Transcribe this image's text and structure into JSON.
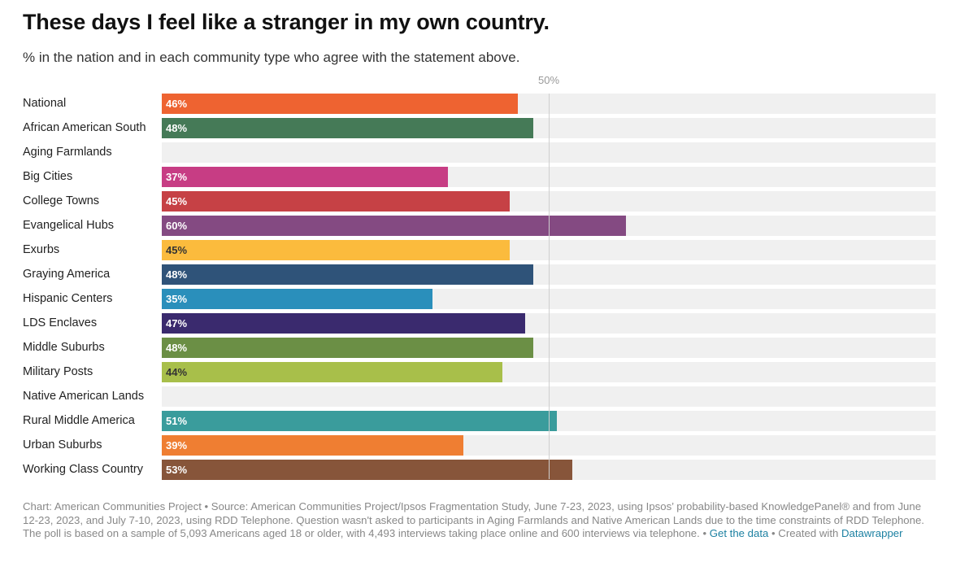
{
  "header": {
    "title": "These days I feel like a stranger in my own country.",
    "subtitle": "% in the nation and in each community type who agree with the statement above."
  },
  "chart_data": {
    "type": "bar",
    "orientation": "horizontal",
    "title": "These days I feel like a stranger in my own country.",
    "subtitle": "% in the nation and in each community type who agree with the statement above.",
    "xlim": [
      0,
      100
    ],
    "reference_line": {
      "value": 50,
      "label": "50%"
    },
    "categories": [
      "National",
      "African American South",
      "Aging Farmlands",
      "Big Cities",
      "College Towns",
      "Evangelical Hubs",
      "Exurbs",
      "Graying America",
      "Hispanic Centers",
      "LDS Enclaves",
      "Middle Suburbs",
      "Military Posts",
      "Native American Lands",
      "Rural Middle America",
      "Urban Suburbs",
      "Working Class Country"
    ],
    "values": [
      46,
      48,
      null,
      37,
      45,
      60,
      45,
      48,
      35,
      47,
      48,
      44,
      null,
      51,
      39,
      53
    ],
    "labels": [
      "46%",
      "48%",
      "",
      "37%",
      "45%",
      "60%",
      "45%",
      "48%",
      "35%",
      "47%",
      "48%",
      "44%",
      "",
      "51%",
      "39%",
      "53%"
    ],
    "colors": [
      "#ee6331",
      "#457a57",
      "#cccccc",
      "#c73d84",
      "#c64145",
      "#844a82",
      "#fbbb3d",
      "#2f5379",
      "#2a8fbb",
      "#3a2a6e",
      "#6b8f45",
      "#a8bf4a",
      "#cccccc",
      "#3a9c9c",
      "#ef7e32",
      "#87553a"
    ],
    "label_colors": [
      "#ffffff",
      "#ffffff",
      "#ffffff",
      "#ffffff",
      "#ffffff",
      "#ffffff",
      "#333333",
      "#ffffff",
      "#ffffff",
      "#ffffff",
      "#ffffff",
      "#333333",
      "#ffffff",
      "#ffffff",
      "#ffffff",
      "#ffffff"
    ]
  },
  "footer": {
    "source_text": "Chart: American Communities Project • Source: American Communities Project/Ipsos Fragmentation Study, June 7-23, 2023, using Ipsos’ probability-based KnowledgePanel® and from June 12-23, 2023, and July 7-10, 2023, using RDD Telephone. Question wasn't asked to participants in Aging Farmlands and Native American Lands due to the time constraints of RDD Telephone. The poll is based on a sample of 5,093 Americans aged 18 or older, with 4,493 interviews taking place online and 600 interviews via telephone. •",
    "get_data_link": "Get the data",
    "created_with_text": "• Created with",
    "datawrapper_link": "Datawrapper"
  }
}
